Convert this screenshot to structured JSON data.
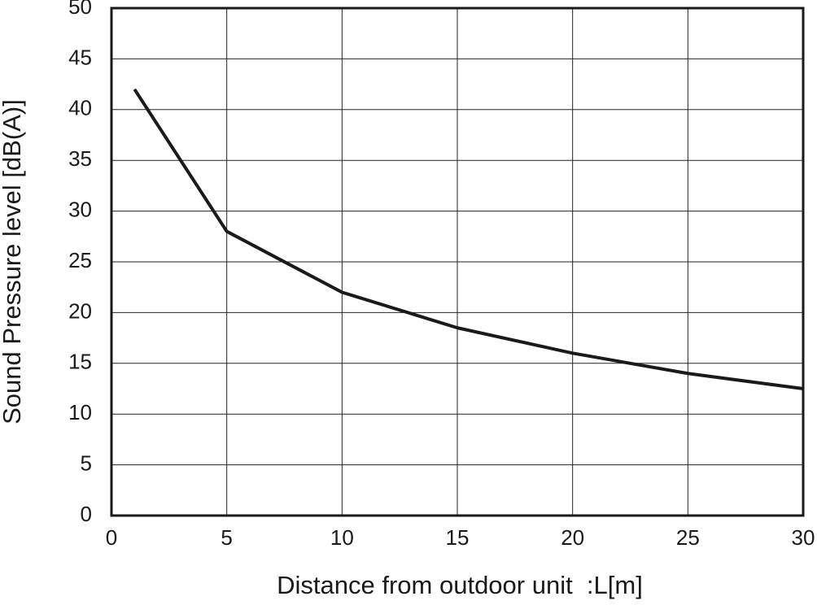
{
  "chart_data": {
    "type": "line",
    "x_label": "Distance from outdoor unit  :L[m]",
    "y_label": "Sound Pressure level [dB(A)]",
    "x": [
      1,
      5,
      10,
      15,
      20,
      25,
      30
    ],
    "series": [
      {
        "name": "Sound pressure",
        "color": "#1a1a1a",
        "values": [
          42,
          28,
          22,
          18.5,
          16,
          14,
          12.5
        ]
      }
    ],
    "xlim": [
      0,
      30
    ],
    "xticks": [
      0,
      5,
      10,
      15,
      20,
      25,
      30
    ],
    "ylim": [
      0,
      50
    ],
    "yticks": [
      0,
      5,
      10,
      15,
      20,
      25,
      30,
      35,
      40,
      45,
      50
    ],
    "grid": true
  }
}
